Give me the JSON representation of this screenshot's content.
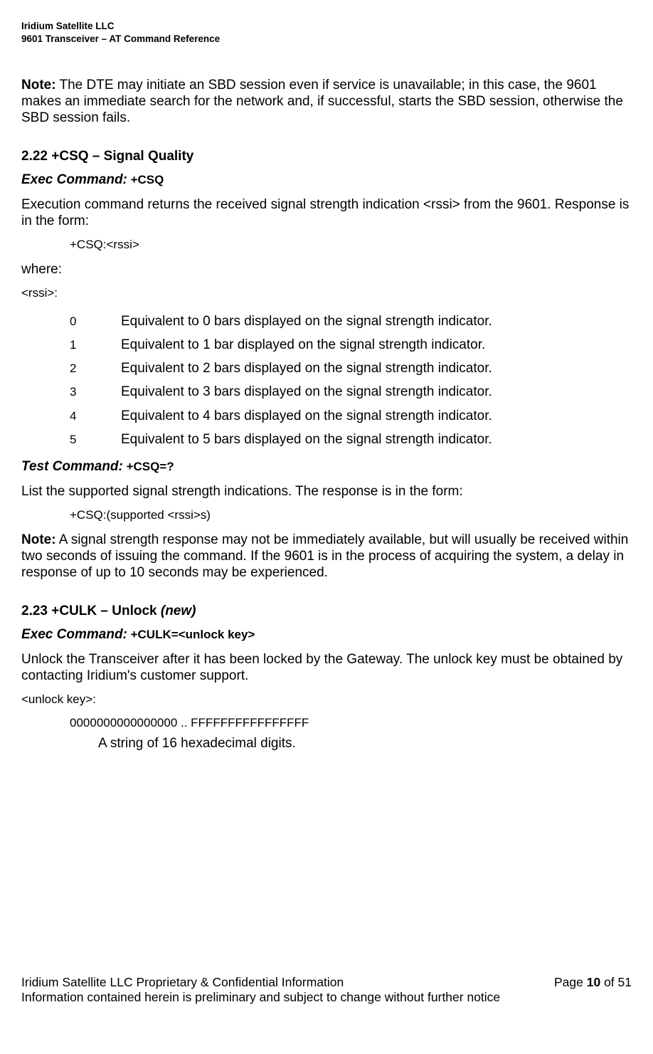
{
  "header": {
    "line1": "Iridium Satellite LLC",
    "line2": "9601 Transceiver – AT Command Reference"
  },
  "note1": {
    "label": "Note:",
    "text": " The DTE may initiate an SBD session even if service is unavailable; in this case, the 9601 makes an immediate search for the network and, if successful, starts the SBD session, otherwise the SBD session fails."
  },
  "s222": {
    "heading": "2.22  +CSQ – Signal Quality",
    "exec_label": "Exec Command:",
    "exec_code": " +CSQ",
    "desc": "Execution command returns the received signal strength indication <rssi> from the 9601. Response is in the form:",
    "form": "+CSQ:<rssi>",
    "where": "where:",
    "rssi_label": "<rssi>:",
    "rows": [
      {
        "v": "0",
        "d": "Equivalent to 0 bars displayed on the signal strength indicator."
      },
      {
        "v": "1",
        "d": "Equivalent to 1 bar displayed on the signal strength indicator."
      },
      {
        "v": "2",
        "d": "Equivalent to 2 bars displayed on the signal strength indicator."
      },
      {
        "v": "3",
        "d": "Equivalent to 3 bars displayed on the signal strength indicator."
      },
      {
        "v": "4",
        "d": "Equivalent to 4 bars displayed on the signal strength indicator."
      },
      {
        "v": "5",
        "d": "Equivalent to 5 bars displayed on the signal strength indicator."
      }
    ],
    "test_label": "Test Command:",
    "test_code": " +CSQ=?",
    "test_desc": "List the supported signal strength indications. The response is in the form:",
    "test_form": "+CSQ:(supported <rssi>s)",
    "note_label": "Note:",
    "note_text": " A signal strength response may not be immediately available, but will usually be received within two seconds of issuing the command. If the 9601 is in the process of acquiring the system, a delay in response of up to 10 seconds may be experienced."
  },
  "s223": {
    "heading_prefix": "2.23  +CULK – Unlock ",
    "heading_new": "(new)",
    "exec_label": "Exec Command:",
    "exec_code": " +CULK=<unlock key>",
    "desc": "Unlock the Transceiver after it has been locked by the Gateway. The unlock key must be obtained by contacting Iridium's customer support.",
    "key_label": "<unlock key>:",
    "key_range": "0000000000000000 .. FFFFFFFFFFFFFFFF",
    "key_desc": "A string of 16 hexadecimal digits."
  },
  "footer": {
    "left": "Iridium Satellite LLC Proprietary & Confidential Information",
    "right_prefix": "Page ",
    "right_page": "10",
    "right_suffix": " of 51",
    "line2": "Information contained herein is preliminary and subject to change without further notice"
  }
}
